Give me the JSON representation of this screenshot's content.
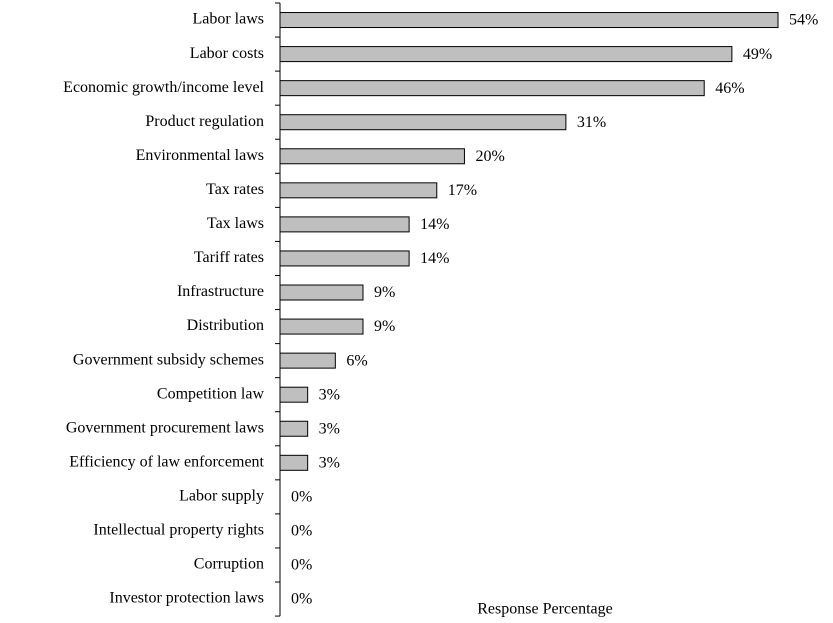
{
  "chart_data": {
    "type": "hbar",
    "categories": [
      "Labor laws",
      "Labor costs",
      "Economic growth/income level",
      "Product regulation",
      "Environmental laws",
      "Tax rates",
      "Tax laws",
      "Tariff rates",
      "Infrastructure",
      "Distribution",
      "Government subsidy schemes",
      "Competition law",
      "Government procurement laws",
      "Efficiency of law enforcement",
      "Labor supply",
      "Intellectual property rights",
      "Corruption",
      "Investor protection laws"
    ],
    "values": [
      54,
      49,
      46,
      31,
      20,
      17,
      14,
      14,
      9,
      9,
      6,
      3,
      3,
      3,
      0,
      0,
      0,
      0
    ],
    "value_labels": [
      "54%",
      "49%",
      "46%",
      "31%",
      "20%",
      "17%",
      "14%",
      "14%",
      "9%",
      "9%",
      "6%",
      "3%",
      "3%",
      "3%",
      "0%",
      "0%",
      "0%",
      "0%"
    ],
    "color": "#bfbfbf",
    "xlim": [
      0,
      54
    ],
    "x_label": "Response Percentage"
  }
}
